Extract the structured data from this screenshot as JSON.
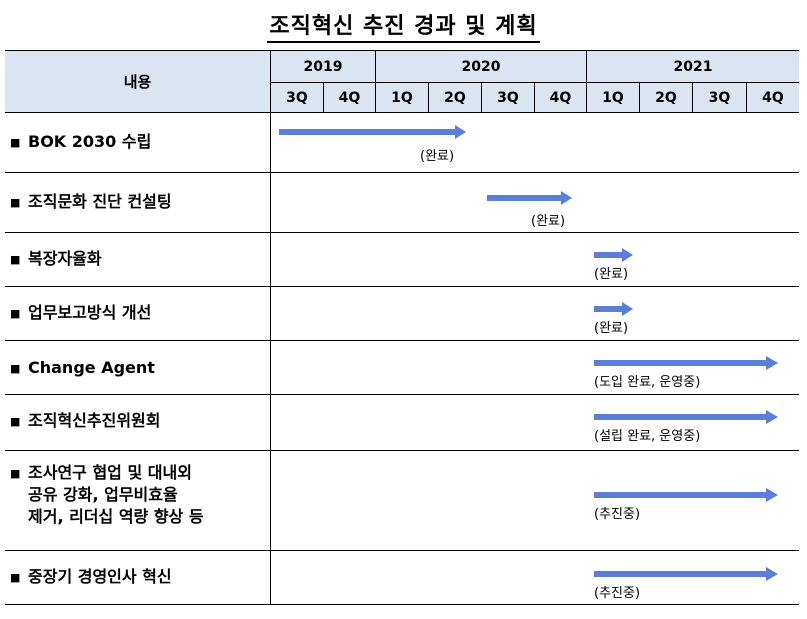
{
  "title": "조직혁신 추진 경과 및 계획",
  "header": {
    "content_label": "내용",
    "years": [
      "2019",
      "2020",
      "2021"
    ],
    "quarters": [
      "3Q",
      "4Q",
      "1Q",
      "2Q",
      "3Q",
      "4Q",
      "1Q",
      "2Q",
      "3Q",
      "4Q"
    ]
  },
  "bullet": "■",
  "rows": [
    {
      "label": "BOK 2030 수립",
      "status": "(완료)"
    },
    {
      "label": "조직문화 진단 컨설팅",
      "status": "(완료)"
    },
    {
      "label": "복장자율화",
      "status": "(완료)"
    },
    {
      "label": "업무보고방식 개선",
      "status": "(완료)"
    },
    {
      "label": "Change Agent",
      "status": "(도입 완료, 운영중)"
    },
    {
      "label": "조직혁신추진위원회",
      "status": "(설립 완료, 운영중)"
    },
    {
      "label": "조사연구 협업 및 대내외\n공유 강화, 업무비효율\n제거, 리더십 역량 향상 등",
      "status": "(추진중)"
    },
    {
      "label": "중장기 경영인사 혁신",
      "status": "(추진중)"
    }
  ],
  "colors": {
    "header_bg": "#dbe5f1",
    "arrow": "#5b7fd6"
  }
}
